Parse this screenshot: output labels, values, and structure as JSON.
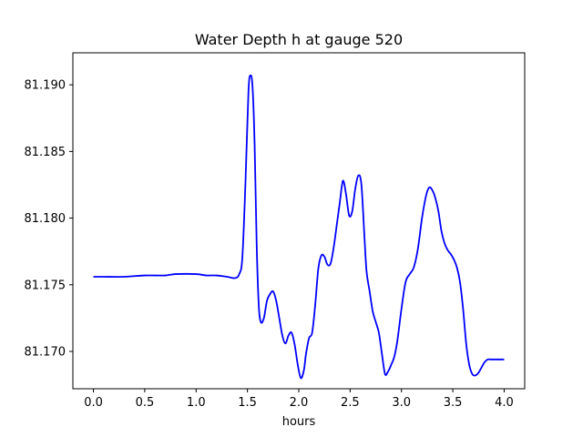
{
  "chart_data": {
    "type": "line",
    "title": "Water Depth h at gauge 520",
    "xlabel": "hours",
    "ylabel": "",
    "xlim": [
      -0.2,
      4.2
    ],
    "ylim": [
      81.1672,
      81.1924
    ],
    "xticks": [
      0.0,
      0.5,
      1.0,
      1.5,
      2.0,
      2.5,
      3.0,
      3.5,
      4.0
    ],
    "xtick_labels": [
      "0.0",
      "0.5",
      "1.0",
      "1.5",
      "2.0",
      "2.5",
      "3.0",
      "3.5",
      "4.0"
    ],
    "yticks": [
      81.17,
      81.175,
      81.18,
      81.185,
      81.19
    ],
    "ytick_labels": [
      "81.170",
      "81.175",
      "81.180",
      "81.185",
      "81.190"
    ],
    "grid": false,
    "series": [
      {
        "color": "#0000ff",
        "x": [
          0.0,
          0.1,
          0.3,
          0.5,
          0.7,
          0.8,
          1.0,
          1.1,
          1.2,
          1.3,
          1.38,
          1.42,
          1.45,
          1.48,
          1.51,
          1.53,
          1.55,
          1.57,
          1.59,
          1.61,
          1.63,
          1.66,
          1.69,
          1.72,
          1.75,
          1.78,
          1.81,
          1.84,
          1.87,
          1.9,
          1.93,
          1.96,
          1.99,
          2.02,
          2.05,
          2.07,
          2.1,
          2.13,
          2.16,
          2.19,
          2.22,
          2.25,
          2.28,
          2.31,
          2.34,
          2.37,
          2.4,
          2.43,
          2.46,
          2.49,
          2.52,
          2.55,
          2.58,
          2.61,
          2.64,
          2.66,
          2.69,
          2.72,
          2.75,
          2.78,
          2.81,
          2.84,
          2.87,
          2.9,
          2.93,
          2.96,
          3.0,
          3.04,
          3.08,
          3.12,
          3.16,
          3.2,
          3.24,
          3.27,
          3.3,
          3.33,
          3.36,
          3.39,
          3.42,
          3.45,
          3.48,
          3.51,
          3.54,
          3.57,
          3.6,
          3.63,
          3.66,
          3.69,
          3.72,
          3.75,
          3.78,
          3.81,
          3.84,
          3.87,
          3.9,
          3.93,
          3.96,
          4.0
        ],
        "y": [
          81.1756,
          81.1756,
          81.1756,
          81.1757,
          81.1757,
          81.1758,
          81.1758,
          81.1757,
          81.1757,
          81.1756,
          81.1755,
          81.1758,
          81.177,
          81.1825,
          81.1895,
          81.1907,
          81.1898,
          81.1855,
          81.178,
          81.1735,
          81.1722,
          81.1725,
          81.1738,
          81.1743,
          81.1745,
          81.1738,
          81.1725,
          81.1712,
          81.1706,
          81.1712,
          81.1714,
          81.1705,
          81.169,
          81.168,
          81.1686,
          81.1698,
          81.171,
          81.1714,
          81.1735,
          81.1762,
          81.1772,
          81.1771,
          81.1765,
          81.1766,
          81.1778,
          81.1795,
          81.1812,
          81.1828,
          81.1818,
          81.1802,
          81.1805,
          81.1822,
          81.1832,
          81.1825,
          81.1785,
          81.176,
          81.1745,
          81.173,
          81.1722,
          81.1714,
          81.1698,
          81.1683,
          81.1685,
          81.169,
          81.1696,
          81.1708,
          81.1732,
          81.1752,
          81.1758,
          81.1763,
          81.1777,
          81.18,
          81.1817,
          81.1823,
          81.1821,
          81.1815,
          81.1805,
          81.179,
          81.1781,
          81.1776,
          81.1773,
          81.1769,
          81.1763,
          81.1752,
          81.1732,
          81.1706,
          81.169,
          81.1683,
          81.1682,
          81.1684,
          81.1688,
          81.1692,
          81.1694,
          81.1694,
          81.1694,
          81.1694,
          81.1694,
          81.1694
        ]
      }
    ]
  }
}
